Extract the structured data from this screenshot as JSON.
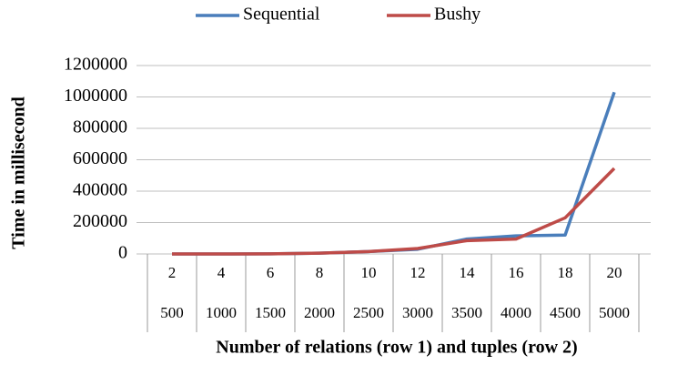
{
  "chart_data": {
    "type": "line",
    "x_label": "Number of relations (row 1) and tuples (row 2)",
    "y_label": "Time in millisecond",
    "categories": [
      "2",
      "4",
      "6",
      "8",
      "10",
      "12",
      "14",
      "16",
      "18",
      "20"
    ],
    "subcategories": [
      "500",
      "1000",
      "1500",
      "2000",
      "2500",
      "3000",
      "3500",
      "4000",
      "4500",
      "5000"
    ],
    "series": [
      {
        "name": "Sequential",
        "color": "#4a7ebb",
        "values": [
          0,
          0,
          1000,
          5000,
          15000,
          30000,
          95000,
          115000,
          120000,
          1030000
        ]
      },
      {
        "name": "Bushy",
        "color": "#be4b48",
        "values": [
          0,
          0,
          1000,
          5000,
          15000,
          35000,
          85000,
          95000,
          230000,
          545000
        ]
      }
    ],
    "ylim": [
      0,
      1200000
    ],
    "yticks": [
      0,
      200000,
      400000,
      600000,
      800000,
      1000000,
      1200000
    ],
    "grid": true
  }
}
